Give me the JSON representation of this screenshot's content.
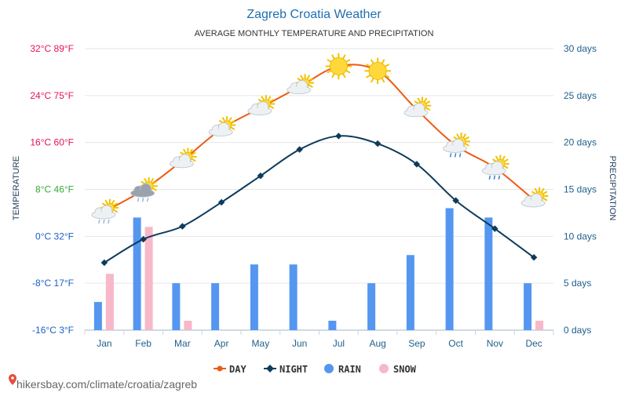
{
  "chart_data": {
    "type": "line",
    "title": "Zagreb Croatia Weather",
    "subtitle": "AVERAGE MONTHLY TEMPERATURE AND PRECIPITATION",
    "categories": [
      "Jan",
      "Feb",
      "Mar",
      "Apr",
      "May",
      "Jun",
      "Jul",
      "Aug",
      "Sep",
      "Oct",
      "Nov",
      "Dec"
    ],
    "ylabel": "TEMPERATURE",
    "y2label": "PRECIPITATION",
    "ylim": [
      -16,
      32
    ],
    "y2lim": [
      0,
      30
    ],
    "grid": true,
    "legend_position": "bottom",
    "yticks": [
      {
        "value": 32,
        "label": "32°C 89°F",
        "color": "#e8115a"
      },
      {
        "value": 24,
        "label": "24°C 75°F",
        "color": "#e8115a"
      },
      {
        "value": 16,
        "label": "16°C 60°F",
        "color": "#e8115a"
      },
      {
        "value": 8,
        "label": "8°C 46°F",
        "color": "#3aa83a"
      },
      {
        "value": 0,
        "label": "0°C 32°F",
        "color": "#1c5fc8"
      },
      {
        "value": -8,
        "label": "-8°C 17°F",
        "color": "#1c5fc8"
      },
      {
        "value": -16,
        "label": "-16°C 3°F",
        "color": "#1c5fc8"
      }
    ],
    "y2ticks": [
      {
        "value": 30,
        "label": "30 days"
      },
      {
        "value": 25,
        "label": "25 days"
      },
      {
        "value": 20,
        "label": "20 days"
      },
      {
        "value": 15,
        "label": "15 days"
      },
      {
        "value": 10,
        "label": "10 days"
      },
      {
        "value": 5,
        "label": "5 days"
      },
      {
        "value": 0,
        "label": "0 days"
      }
    ],
    "series": [
      {
        "name": "DAY",
        "kind": "line",
        "axis": "left",
        "color": "#ee5a12",
        "values": [
          4.2,
          7.9,
          12.9,
          18.3,
          21.9,
          25.5,
          29.0,
          28.2,
          21.6,
          15.5,
          11.7,
          6.2
        ]
      },
      {
        "name": "NIGHT",
        "kind": "line",
        "axis": "left",
        "color": "#0d3b5c",
        "values": [
          -4.5,
          -0.5,
          1.7,
          5.8,
          10.3,
          14.8,
          17.1,
          15.8,
          12.3,
          6.1,
          1.3,
          -3.6
        ]
      },
      {
        "name": "RAIN",
        "kind": "bar",
        "axis": "right",
        "color": "#5596f0",
        "values": [
          3,
          12,
          5,
          5,
          7,
          7,
          1,
          5,
          8,
          13,
          12,
          5
        ]
      },
      {
        "name": "SNOW",
        "kind": "bar",
        "axis": "right",
        "color": "#f7b8c8",
        "values": [
          6,
          11,
          1,
          0,
          0,
          0,
          0,
          0,
          0,
          0,
          0,
          1
        ]
      }
    ],
    "weather_icons": [
      "snow-partly-cloudy-icon",
      "snow-rain-cloudy-icon",
      "partly-cloudy-icon",
      "partly-cloudy-icon",
      "partly-cloudy-icon",
      "partly-cloudy-icon",
      "sun-icon",
      "sun-icon",
      "partly-cloudy-icon",
      "rain-partly-cloudy-icon",
      "rain-partly-cloudy-icon",
      "partly-cloudy-icon"
    ]
  },
  "footer": {
    "text": "hikersbay.com/climate/croatia/zagreb",
    "icon": "location-pin-icon"
  }
}
